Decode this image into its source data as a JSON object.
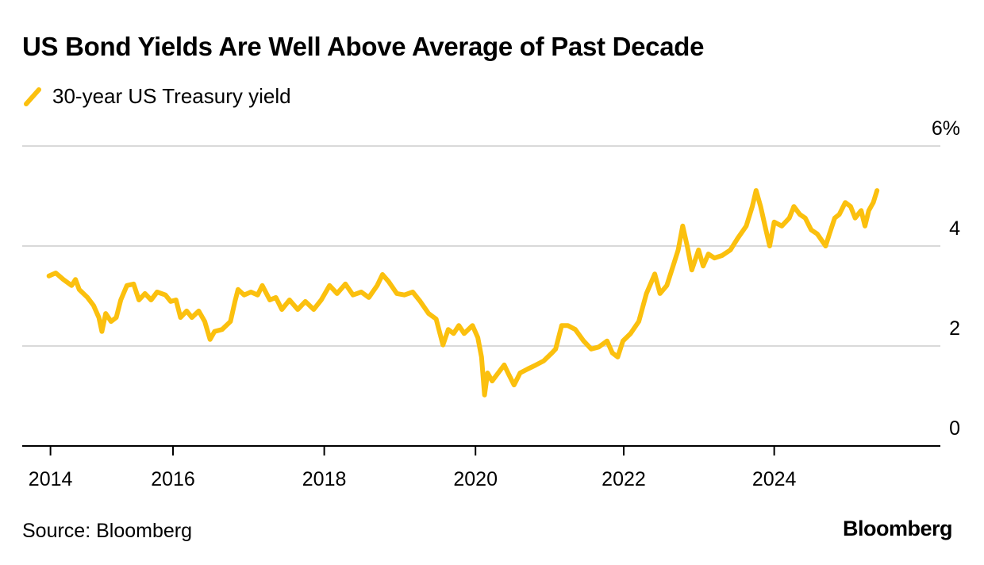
{
  "chart_data": {
    "type": "line",
    "title": "US Bond Yields Are Well Above Average of Past Decade",
    "xlabel": "",
    "ylabel": "",
    "ylim": [
      0,
      6
    ],
    "xlim": [
      2013.65,
      2026.05
    ],
    "grid": true,
    "legend_placement": "top-left",
    "y_ticks": [
      {
        "value": 6,
        "label": "6%"
      },
      {
        "value": 4,
        "label": "4"
      },
      {
        "value": 2,
        "label": "2"
      },
      {
        "value": 0,
        "label": "0"
      }
    ],
    "x_ticks": [
      {
        "value": 2014.38,
        "label": "2014"
      },
      {
        "value": 2016.0,
        "label": "2016"
      },
      {
        "value": 2018.0,
        "label": "2018"
      },
      {
        "value": 2020.0,
        "label": "2020"
      },
      {
        "value": 2021.96,
        "label": "2022"
      },
      {
        "value": 2023.95,
        "label": "2024"
      }
    ],
    "series": [
      {
        "name": "30-year US Treasury yield",
        "color": "#FBC00E",
        "points": [
          [
            2014.36,
            3.4
          ],
          [
            2014.45,
            3.46
          ],
          [
            2014.55,
            3.33
          ],
          [
            2014.66,
            3.21
          ],
          [
            2014.71,
            3.33
          ],
          [
            2014.76,
            3.13
          ],
          [
            2014.87,
            2.97
          ],
          [
            2014.95,
            2.81
          ],
          [
            2015.02,
            2.57
          ],
          [
            2015.06,
            2.29
          ],
          [
            2015.11,
            2.65
          ],
          [
            2015.18,
            2.49
          ],
          [
            2015.25,
            2.57
          ],
          [
            2015.31,
            2.92
          ],
          [
            2015.39,
            3.21
          ],
          [
            2015.48,
            3.24
          ],
          [
            2015.55,
            2.92
          ],
          [
            2015.63,
            3.05
          ],
          [
            2015.71,
            2.92
          ],
          [
            2015.79,
            3.08
          ],
          [
            2015.9,
            3.02
          ],
          [
            2015.97,
            2.89
          ],
          [
            2016.04,
            2.92
          ],
          [
            2016.1,
            2.57
          ],
          [
            2016.18,
            2.7
          ],
          [
            2016.25,
            2.57
          ],
          [
            2016.34,
            2.7
          ],
          [
            2016.42,
            2.49
          ],
          [
            2016.49,
            2.13
          ],
          [
            2016.55,
            2.29
          ],
          [
            2016.65,
            2.33
          ],
          [
            2016.76,
            2.49
          ],
          [
            2016.82,
            2.89
          ],
          [
            2016.86,
            3.13
          ],
          [
            2016.94,
            3.02
          ],
          [
            2017.03,
            3.08
          ],
          [
            2017.12,
            3.02
          ],
          [
            2017.18,
            3.21
          ],
          [
            2017.28,
            2.92
          ],
          [
            2017.36,
            2.97
          ],
          [
            2017.44,
            2.73
          ],
          [
            2017.54,
            2.92
          ],
          [
            2017.65,
            2.73
          ],
          [
            2017.75,
            2.89
          ],
          [
            2017.86,
            2.73
          ],
          [
            2017.96,
            2.92
          ],
          [
            2018.07,
            3.21
          ],
          [
            2018.17,
            3.05
          ],
          [
            2018.28,
            3.24
          ],
          [
            2018.38,
            3.02
          ],
          [
            2018.49,
            3.08
          ],
          [
            2018.59,
            2.97
          ],
          [
            2018.7,
            3.21
          ],
          [
            2018.77,
            3.43
          ],
          [
            2018.85,
            3.29
          ],
          [
            2018.96,
            3.05
          ],
          [
            2019.06,
            3.02
          ],
          [
            2019.17,
            3.08
          ],
          [
            2019.27,
            2.89
          ],
          [
            2019.38,
            2.65
          ],
          [
            2019.48,
            2.54
          ],
          [
            2019.57,
            2.02
          ],
          [
            2019.64,
            2.33
          ],
          [
            2019.71,
            2.25
          ],
          [
            2019.78,
            2.41
          ],
          [
            2019.85,
            2.25
          ],
          [
            2019.96,
            2.41
          ],
          [
            2020.03,
            2.17
          ],
          [
            2020.08,
            1.78
          ],
          [
            2020.12,
            1.02
          ],
          [
            2020.16,
            1.46
          ],
          [
            2020.22,
            1.3
          ],
          [
            2020.3,
            1.46
          ],
          [
            2020.38,
            1.62
          ],
          [
            2020.43,
            1.46
          ],
          [
            2020.51,
            1.22
          ],
          [
            2020.59,
            1.46
          ],
          [
            2020.69,
            1.54
          ],
          [
            2020.8,
            1.62
          ],
          [
            2020.9,
            1.7
          ],
          [
            2021.01,
            1.86
          ],
          [
            2021.06,
            1.94
          ],
          [
            2021.14,
            2.41
          ],
          [
            2021.22,
            2.41
          ],
          [
            2021.32,
            2.33
          ],
          [
            2021.43,
            2.1
          ],
          [
            2021.53,
            1.94
          ],
          [
            2021.63,
            1.98
          ],
          [
            2021.74,
            2.1
          ],
          [
            2021.81,
            1.86
          ],
          [
            2021.88,
            1.78
          ],
          [
            2021.95,
            2.1
          ],
          [
            2022.05,
            2.25
          ],
          [
            2022.16,
            2.49
          ],
          [
            2022.26,
            3.05
          ],
          [
            2022.37,
            3.44
          ],
          [
            2022.44,
            3.05
          ],
          [
            2022.53,
            3.21
          ],
          [
            2022.63,
            3.68
          ],
          [
            2022.68,
            3.92
          ],
          [
            2022.74,
            4.4
          ],
          [
            2022.8,
            4.0
          ],
          [
            2022.86,
            3.52
          ],
          [
            2022.95,
            3.92
          ],
          [
            2023.01,
            3.6
          ],
          [
            2023.08,
            3.84
          ],
          [
            2023.16,
            3.76
          ],
          [
            2023.26,
            3.81
          ],
          [
            2023.37,
            3.92
          ],
          [
            2023.47,
            4.16
          ],
          [
            2023.58,
            4.4
          ],
          [
            2023.66,
            4.79
          ],
          [
            2023.71,
            5.11
          ],
          [
            2023.77,
            4.79
          ],
          [
            2023.84,
            4.32
          ],
          [
            2023.89,
            4.0
          ],
          [
            2023.95,
            4.48
          ],
          [
            2024.05,
            4.4
          ],
          [
            2024.15,
            4.56
          ],
          [
            2024.21,
            4.79
          ],
          [
            2024.29,
            4.63
          ],
          [
            2024.36,
            4.56
          ],
          [
            2024.44,
            4.32
          ],
          [
            2024.52,
            4.24
          ],
          [
            2024.63,
            4.0
          ],
          [
            2024.68,
            4.24
          ],
          [
            2024.75,
            4.56
          ],
          [
            2024.81,
            4.63
          ],
          [
            2024.89,
            4.87
          ],
          [
            2024.96,
            4.79
          ],
          [
            2025.02,
            4.56
          ],
          [
            2025.1,
            4.71
          ],
          [
            2025.15,
            4.4
          ],
          [
            2025.2,
            4.71
          ],
          [
            2025.26,
            4.87
          ],
          [
            2025.31,
            5.11
          ]
        ]
      }
    ],
    "source": "Source: Bloomberg",
    "logo": "Bloomberg"
  }
}
